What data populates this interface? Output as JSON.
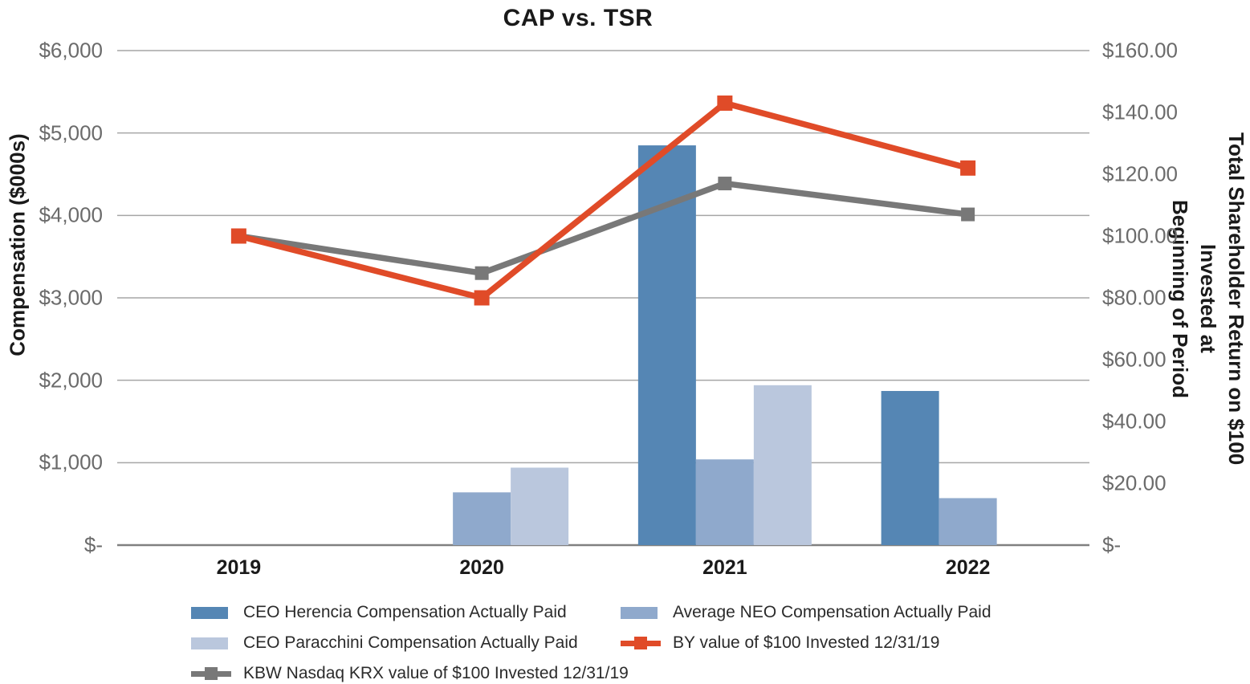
{
  "chart_data": {
    "type": "combo",
    "title": "CAP vs. TSR",
    "categories": [
      "2019",
      "2020",
      "2021",
      "2022"
    ],
    "bar_series": [
      {
        "name": "CEO Herencia Compensation Actually Paid",
        "axis": "left",
        "color": "#5586b4",
        "values": [
          null,
          null,
          4850,
          1870
        ]
      },
      {
        "name": "Average NEO Compensation Actually Paid",
        "axis": "left",
        "color": "#8fa9cc",
        "values": [
          null,
          640,
          1040,
          570
        ]
      },
      {
        "name": "CEO Paracchini Compensation Actually Paid",
        "axis": "left",
        "color": "#bac7dd",
        "values": [
          null,
          940,
          1940,
          null
        ]
      }
    ],
    "line_series": [
      {
        "name": "KBW Nasdaq KRX value of $100 Invested 12/31/19",
        "axis": "right",
        "color": "#787878",
        "marker_size": 17,
        "values": [
          100,
          88,
          117,
          107
        ]
      },
      {
        "name": "BY value of $100 Invested 12/31/19",
        "axis": "right",
        "color": "#e04b28",
        "marker_size": 19,
        "values": [
          100,
          80,
          143,
          122
        ]
      }
    ],
    "left_axis": {
      "label": "Compensation ($000s)",
      "min": 0,
      "max": 6000,
      "ticks": [
        "$6,000",
        "$5,000",
        "$4,000",
        "$3,000",
        "$2,000",
        "$1,000",
        "$-"
      ]
    },
    "right_axis": {
      "label_line1": "Total Shareholder Return on $100 Invested at",
      "label_line2": "Beginning of Period",
      "min": 0,
      "max": 160,
      "ticks": [
        "$160.00",
        "$140.00",
        "$120.00",
        "$100.00",
        "$80.00",
        "$60.00",
        "$40.00",
        "$20.00",
        "$-"
      ]
    },
    "grid": true,
    "legend_position": "bottom"
  },
  "legend": {
    "items": [
      {
        "label": "CEO Herencia Compensation Actually Paid",
        "marker": "bar",
        "color": "#5586b4"
      },
      {
        "label": "Average NEO Compensation Actually Paid",
        "marker": "bar",
        "color": "#8fa9cc"
      },
      {
        "label": "CEO Paracchini Compensation Actually Paid",
        "marker": "bar",
        "color": "#bac7dd"
      },
      {
        "label": "BY value of $100 Invested 12/31/19",
        "marker": "line",
        "color": "#e04b28"
      },
      {
        "label": "KBW Nasdaq KRX value of $100 Invested 12/31/19",
        "marker": "line",
        "color": "#787878"
      }
    ]
  },
  "colors": {
    "grid": "#a6a6a6",
    "baseline": "#808080",
    "tick_text": "#6b6b6b",
    "title_text": "#1a1a1a"
  }
}
